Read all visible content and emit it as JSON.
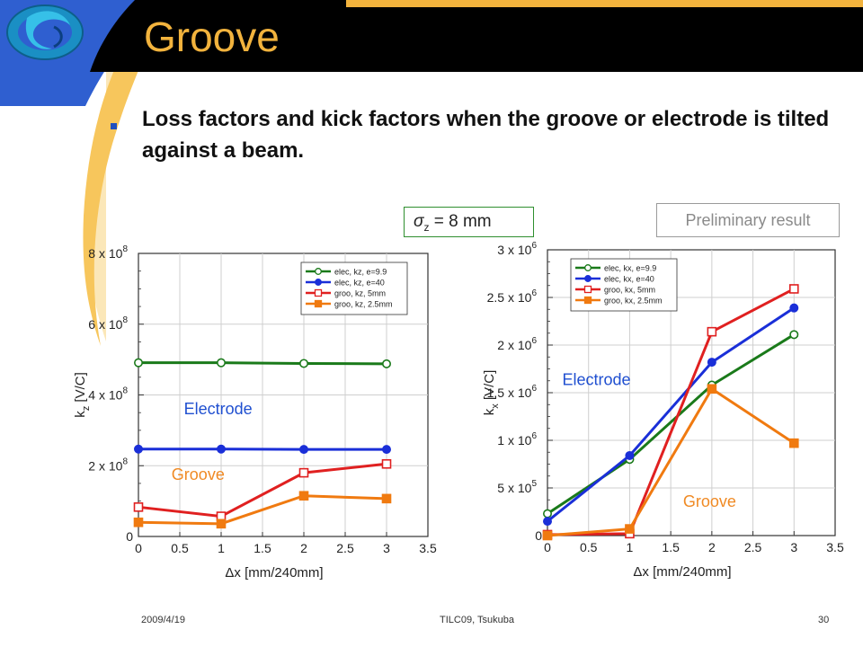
{
  "slide": {
    "title": "Groove",
    "bullet": "Loss factors and kick factors when the groove or electrode is tilted against a beam.",
    "sigma_label": "= 8 mm",
    "sigma_symbol": "σ",
    "sigma_sub": "z",
    "preliminary": "Preliminary result",
    "footer_left": "2009/4/19",
    "footer_center": "TILC09,  Tsukuba",
    "footer_right": "30",
    "colors": {
      "title": "#f2b33d",
      "blue": "#2f5fd0",
      "dark": "#000000",
      "orange_swoosh": "#f7c65c"
    }
  },
  "chart_data": [
    {
      "type": "line",
      "xlabel": "Δx  [mm/240mm]",
      "ylabel": "k_z [V/C]",
      "xlim": [
        0,
        3.5
      ],
      "ylim": [
        0,
        800000000
      ],
      "x_ticks": [
        "0",
        "0.5",
        "1",
        "1.5",
        "2",
        "2.5",
        "3",
        "3.5"
      ],
      "y_ticks": [
        {
          "v": 0,
          "m": "0",
          "e": ""
        },
        {
          "v": 200000000,
          "m": "2 x 10",
          "e": "8"
        },
        {
          "v": 400000000,
          "m": "4 x 10",
          "e": "8"
        },
        {
          "v": 600000000,
          "m": "6 x 10",
          "e": "8"
        },
        {
          "v": 800000000,
          "m": "8 x 10",
          "e": "8"
        }
      ],
      "annotations": [
        {
          "text": "Electrode",
          "color": "#1f4fd0",
          "x": 0.55,
          "y": 345000000
        },
        {
          "text": "Groove",
          "color": "#f08a24",
          "x": 0.4,
          "y": 160000000
        }
      ],
      "series": [
        {
          "name": "elec, kz, e=9.9",
          "color": "#1a7a1a",
          "marker": "circle",
          "filled": false,
          "x": [
            0,
            1,
            2,
            3
          ],
          "y": [
            491000000,
            491000000,
            489000000,
            488000000
          ]
        },
        {
          "name": "elec, kz, e=40",
          "color": "#1a2fd8",
          "marker": "circle",
          "filled": true,
          "x": [
            0,
            1,
            2,
            3
          ],
          "y": [
            247000000,
            247000000,
            246000000,
            246000000
          ]
        },
        {
          "name": "groo, kz, 5mm",
          "color": "#e02020",
          "marker": "square",
          "filled": false,
          "x": [
            0,
            1,
            2,
            3
          ],
          "y": [
            83000000,
            57000000,
            180000000,
            205000000
          ]
        },
        {
          "name": "groo, kz, 2.5mm",
          "color": "#f07a10",
          "marker": "square",
          "filled": true,
          "x": [
            0,
            1,
            2,
            3
          ],
          "y": [
            40000000,
            36000000,
            115000000,
            107000000
          ]
        }
      ]
    },
    {
      "type": "line",
      "xlabel": "Δx  [mm/240mm]",
      "ylabel": "k_x [V/C]",
      "xlim": [
        0,
        3.5
      ],
      "ylim": [
        0,
        3000000
      ],
      "x_ticks": [
        "0",
        "0.5",
        "1",
        "1.5",
        "2",
        "2.5",
        "3",
        "3.5"
      ],
      "y_ticks": [
        {
          "v": 0,
          "m": "0",
          "e": ""
        },
        {
          "v": 500000,
          "m": "5 x 10",
          "e": "5"
        },
        {
          "v": 1000000,
          "m": "1 x 10",
          "e": "6"
        },
        {
          "v": 1500000,
          "m": "1.5 x 10",
          "e": "6"
        },
        {
          "v": 2000000,
          "m": "2 x 10",
          "e": "6"
        },
        {
          "v": 2500000,
          "m": "2.5 x 10",
          "e": "6"
        },
        {
          "v": 3000000,
          "m": "3 x 10",
          "e": "6"
        }
      ],
      "annotations": [
        {
          "text": "Electrode",
          "color": "#1f4fd0",
          "x": 0.18,
          "y": 1580000
        },
        {
          "text": "Groove",
          "color": "#f08a24",
          "x": 1.65,
          "y": 300000
        }
      ],
      "series": [
        {
          "name": "elec, kx, e=9.9",
          "color": "#1a7a1a",
          "marker": "circle",
          "filled": false,
          "x": [
            0,
            1,
            2,
            3
          ],
          "y": [
            230000,
            800000,
            1580000,
            2110000
          ]
        },
        {
          "name": "elec, kx, e=40",
          "color": "#1a2fd8",
          "marker": "circle",
          "filled": true,
          "x": [
            0,
            1,
            2,
            3
          ],
          "y": [
            150000,
            840000,
            1820000,
            2390000
          ]
        },
        {
          "name": "groo, kx, 5mm",
          "color": "#e02020",
          "marker": "square",
          "filled": false,
          "x": [
            0,
            1,
            2,
            3
          ],
          "y": [
            10000,
            20000,
            2140000,
            2590000
          ]
        },
        {
          "name": "groo, kx, 2.5mm",
          "color": "#f07a10",
          "marker": "square",
          "filled": true,
          "x": [
            0,
            1,
            2,
            3
          ],
          "y": [
            0,
            70000,
            1540000,
            970000
          ]
        }
      ]
    }
  ]
}
